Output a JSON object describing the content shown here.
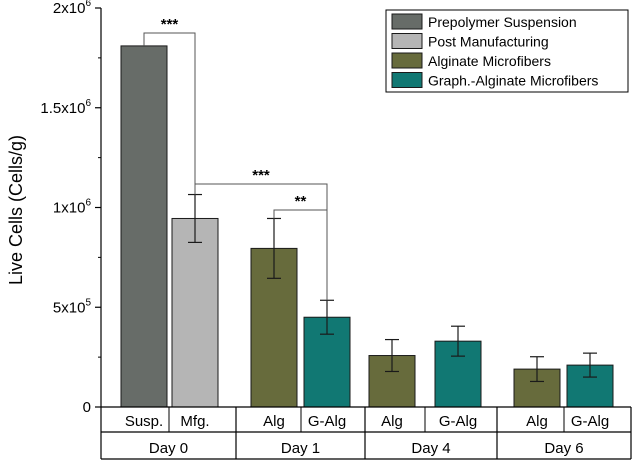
{
  "chart_data": {
    "type": "bar",
    "ylabel": "Live Cells (Cells/g)",
    "xlabel": "",
    "ylim": [
      0,
      2000000
    ],
    "y_ticks": [
      {
        "value": 0,
        "base": "0",
        "exp": ""
      },
      {
        "value": 500000,
        "base": "5x10",
        "exp": "5"
      },
      {
        "value": 1000000,
        "base": "1x10",
        "exp": "6"
      },
      {
        "value": 1500000,
        "base": "1.5x10",
        "exp": "6"
      },
      {
        "value": 2000000,
        "base": "2x10",
        "exp": "6"
      }
    ],
    "categories": [
      "Susp.",
      "Mfg.",
      "Alg",
      "G-Alg",
      "Alg",
      "G-Alg",
      "Alg",
      "G-Alg"
    ],
    "groups": [
      "Day 0",
      "Day 1",
      "Day 4",
      "Day 6"
    ],
    "group_of_bar": [
      0,
      0,
      1,
      1,
      2,
      2,
      3,
      3
    ],
    "values": [
      1810000,
      945000,
      795000,
      450000,
      258000,
      330000,
      190000,
      210000
    ],
    "errors": [
      0,
      120000,
      150000,
      85000,
      80000,
      75000,
      62000,
      60000
    ],
    "series_index": [
      0,
      1,
      2,
      3,
      2,
      3,
      2,
      3
    ],
    "legend": [
      {
        "label": "Prepolymer Suspension",
        "color": "#676c68"
      },
      {
        "label": "Post Manufacturing",
        "color": "#b5b5b5"
      },
      {
        "label": "Alginate Microfibers",
        "color": "#676b3c"
      },
      {
        "label": "Graph.-Alginate Microfibers",
        "color": "#117873"
      }
    ],
    "legend_position": "top-right",
    "significance": [
      {
        "from": 0,
        "to": 1,
        "label": "***"
      },
      {
        "from": 1,
        "to": 3,
        "label": "***"
      },
      {
        "from": 2,
        "to": 3,
        "label": "**"
      }
    ],
    "grid": false
  }
}
